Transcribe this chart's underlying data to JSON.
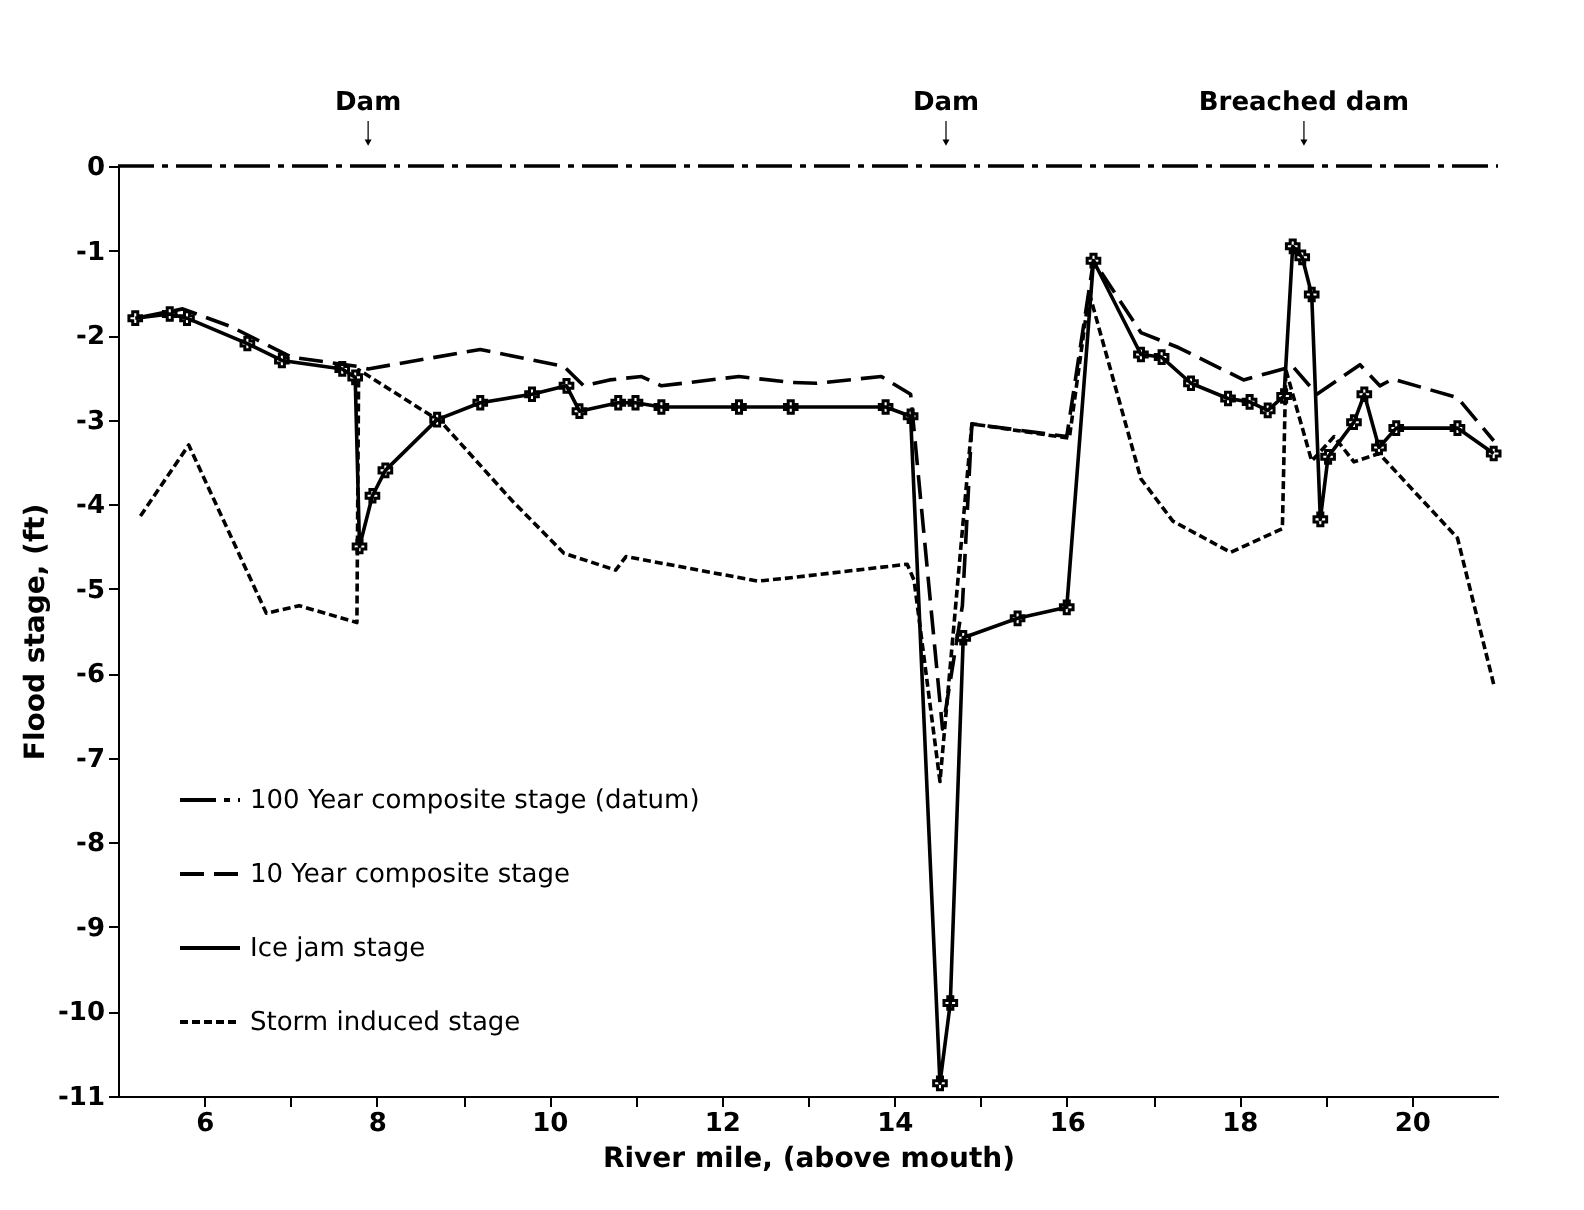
{
  "chart_data": {
    "type": "line",
    "xlabel": "River mile, (above mouth)",
    "ylabel": "Flood stage, (ft)",
    "xlim": [
      5,
      21
    ],
    "xticks": [
      6,
      {
        "value": 7,
        "label": null
      },
      8,
      {
        "value": 9,
        "label": null
      },
      10,
      {
        "value": 11,
        "label": null
      },
      12,
      {
        "value": 13,
        "label": null
      },
      14,
      {
        "value": 15,
        "label": null
      },
      16,
      {
        "value": 17,
        "label": null
      },
      18,
      {
        "value": 19,
        "label": null
      },
      20
    ],
    "ylim": [
      -11,
      0
    ],
    "yticks": [
      -11,
      -10,
      -9,
      -8,
      -7,
      -6,
      -5,
      -4,
      -3,
      -2,
      -1,
      0
    ],
    "grid": false,
    "legend": "bottom left",
    "annotations": [
      {
        "text": "Dam",
        "x": 7.9,
        "y": 0
      },
      {
        "text": "Dam",
        "x": 14.6,
        "y": 0
      },
      {
        "text": "Breached dam",
        "x": 18.75,
        "y": 0
      }
    ],
    "series": [
      {
        "name": "100 Year composite stage (datum)",
        "color": "#000000",
        "line_style": "dashdot",
        "marker": "none",
        "x": [
          5,
          21
        ],
        "values": [
          0,
          0
        ]
      },
      {
        "name": "10 Year  composite stage",
        "color": "#000000",
        "line_style": "dashed",
        "marker": "none",
        "x": [
          5.26,
          5.75,
          6.31,
          7.01,
          7.77,
          7.9,
          9.2,
          10.17,
          10.4,
          10.7,
          11.07,
          11.3,
          12.2,
          12.8,
          13.1,
          13.85,
          14.19,
          14.56,
          14.79,
          14.9,
          16.0,
          16.31,
          16.86,
          17.3,
          18.05,
          18.62,
          18.9,
          19.4,
          19.63,
          19.78,
          20.53,
          20.95
        ],
        "values": [
          -1.79,
          -1.69,
          -1.9,
          -2.26,
          -2.37,
          -2.4,
          -2.17,
          -2.37,
          -2.6,
          -2.53,
          -2.49,
          -2.6,
          -2.49,
          -2.56,
          -2.57,
          -2.49,
          -2.7,
          -6.66,
          -5.2,
          -3.05,
          -3.2,
          -1.12,
          -1.97,
          -2.15,
          -2.53,
          -2.37,
          -2.7,
          -2.35,
          -2.6,
          -2.52,
          -2.74,
          -3.25
        ]
      },
      {
        "name": "Ice jam stage",
        "color": "#000000",
        "line_style": "solid",
        "marker": "cross",
        "x": [
          5.2,
          5.6,
          5.8,
          6.5,
          6.9,
          7.6,
          7.75,
          7.8,
          7.95,
          8.1,
          8.7,
          9.2,
          9.8,
          10.2,
          10.35,
          10.8,
          11.0,
          11.3,
          12.2,
          12.8,
          13.9,
          14.19,
          14.53,
          14.65,
          14.8,
          15.43,
          16.0,
          16.31,
          16.86,
          17.1,
          17.44,
          17.87,
          18.12,
          18.33,
          18.52,
          18.62,
          18.73,
          18.84,
          18.94,
          19.03,
          19.33,
          19.45,
          19.62,
          19.82,
          20.53,
          20.95
        ],
        "values": [
          -1.8,
          -1.75,
          -1.8,
          -2.1,
          -2.3,
          -2.4,
          -2.5,
          -4.5,
          -3.9,
          -3.6,
          -3.0,
          -2.8,
          -2.7,
          -2.6,
          -2.9,
          -2.8,
          -2.8,
          -2.85,
          -2.85,
          -2.85,
          -2.85,
          -2.96,
          -10.85,
          -9.9,
          -5.58,
          -5.35,
          -5.22,
          -1.12,
          -2.23,
          -2.26,
          -2.57,
          -2.75,
          -2.79,
          -2.89,
          -2.72,
          -0.95,
          -1.08,
          -1.52,
          -4.18,
          -3.44,
          -3.03,
          -2.7,
          -3.33,
          -3.1,
          -3.1,
          -3.4
        ]
      },
      {
        "name": "Storm induced stage",
        "color": "#000000",
        "line_style": "dotted",
        "marker": "none",
        "x": [
          5.26,
          5.82,
          6.72,
          7.1,
          7.77,
          7.79,
          8.75,
          9.57,
          10.17,
          10.77,
          10.89,
          12.42,
          12.8,
          14.15,
          14.23,
          14.53,
          14.9,
          16.03,
          16.26,
          16.86,
          17.23,
          17.9,
          18.5,
          18.54,
          18.84,
          19.1,
          19.33,
          19.62,
          20.53,
          20.95
        ],
        "values": [
          -4.14,
          -3.3,
          -5.29,
          -5.2,
          -5.4,
          -2.41,
          -3.03,
          -3.96,
          -4.58,
          -4.78,
          -4.62,
          -4.91,
          -4.87,
          -4.71,
          -4.9,
          -7.28,
          -3.05,
          -3.22,
          -1.5,
          -3.7,
          -4.2,
          -4.57,
          -4.29,
          -2.41,
          -3.49,
          -3.2,
          -3.5,
          -3.4,
          -4.4,
          -6.13
        ]
      }
    ]
  }
}
